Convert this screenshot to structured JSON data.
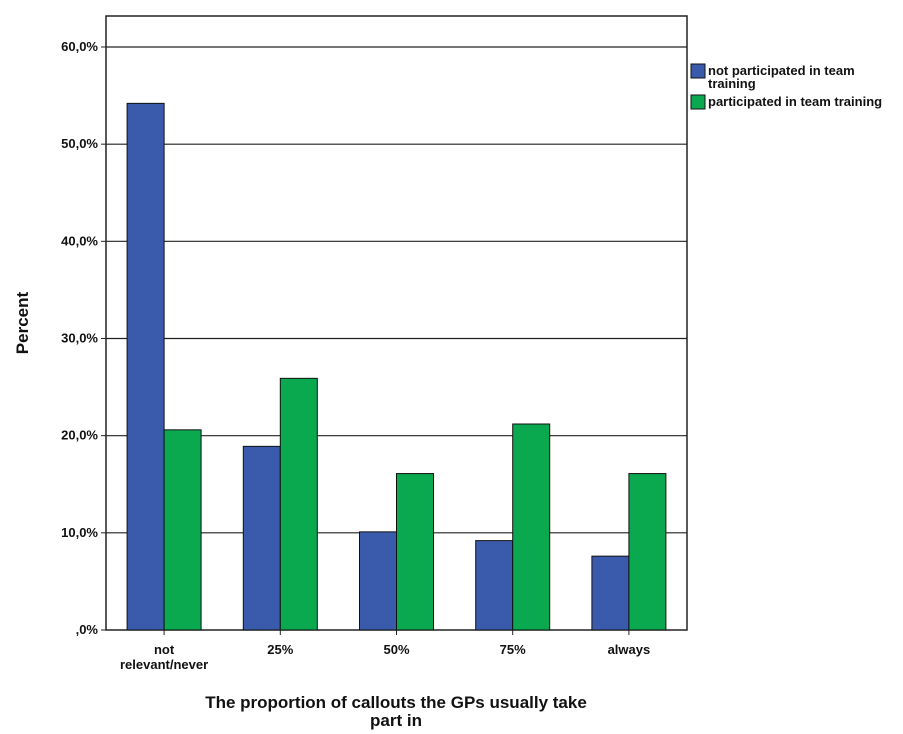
{
  "chart_data": {
    "type": "bar",
    "categories": [
      [
        "not",
        "relevant/never"
      ],
      [
        "25%"
      ],
      [
        "50%"
      ],
      [
        "75%"
      ],
      [
        "always"
      ]
    ],
    "series": [
      {
        "name": [
          "not participated in team",
          "training"
        ],
        "color": "#3a5bab",
        "values": [
          54.2,
          18.9,
          10.1,
          9.2,
          7.6
        ]
      },
      {
        "name": [
          "participated in team training"
        ],
        "color": "#0aa84f",
        "values": [
          20.6,
          25.9,
          16.1,
          21.2,
          16.1
        ]
      }
    ],
    "ylim": [
      0,
      60
    ],
    "yticks": [
      0,
      10,
      20,
      30,
      40,
      50,
      60
    ],
    "ytick_labels": [
      ",0%",
      "10,0%",
      "20,0%",
      "30,0%",
      "40,0%",
      "50,0%",
      "60,0%"
    ],
    "ylabel": "Percent",
    "xlabel": [
      "The proportion of callouts the GPs usually take",
      "part in"
    ],
    "grid": true,
    "legend_position": "right"
  }
}
